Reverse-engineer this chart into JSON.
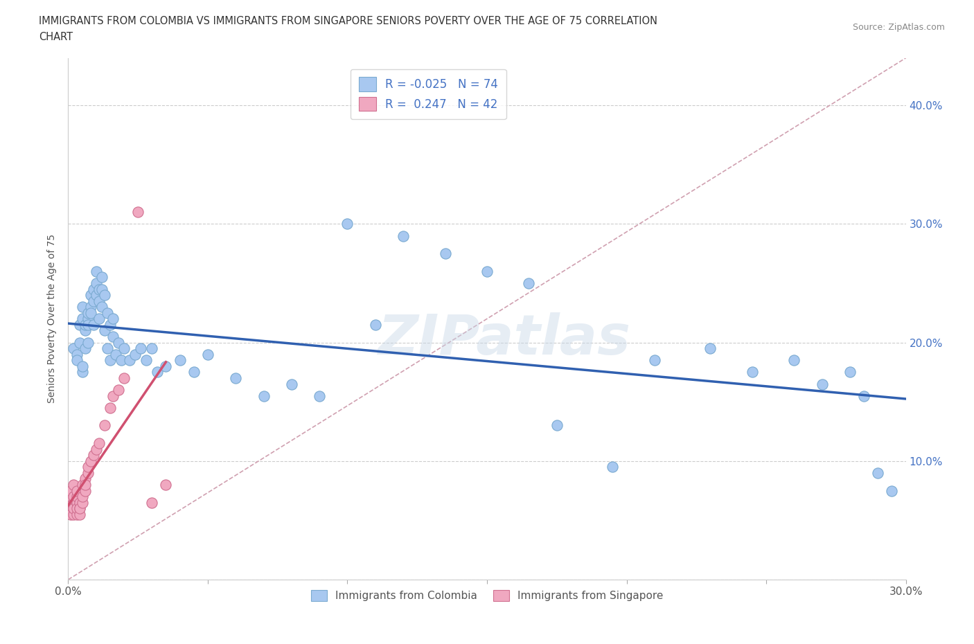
{
  "title_line1": "IMMIGRANTS FROM COLOMBIA VS IMMIGRANTS FROM SINGAPORE SENIORS POVERTY OVER THE AGE OF 75 CORRELATION",
  "title_line2": "CHART",
  "source_text": "Source: ZipAtlas.com",
  "ylabel": "Seniors Poverty Over the Age of 75",
  "r_colombia": -0.025,
  "n_colombia": 74,
  "r_singapore": 0.247,
  "n_singapore": 42,
  "xlim": [
    0.0,
    0.3
  ],
  "ylim": [
    0.0,
    0.44
  ],
  "xticks": [
    0.0,
    0.05,
    0.1,
    0.15,
    0.2,
    0.25,
    0.3
  ],
  "yticks": [
    0.0,
    0.1,
    0.2,
    0.3,
    0.4
  ],
  "colombia_color": "#a8c8f0",
  "colombia_edge_color": "#7aaad0",
  "singapore_color": "#f0a8c0",
  "singapore_edge_color": "#d07090",
  "colombia_line_color": "#3060b0",
  "singapore_line_color": "#d05070",
  "diagonal_color": "#d0a0b0",
  "watermark": "ZIPatlas",
  "colombia_scatter_x": [
    0.002,
    0.003,
    0.003,
    0.004,
    0.004,
    0.005,
    0.005,
    0.005,
    0.005,
    0.006,
    0.006,
    0.006,
    0.007,
    0.007,
    0.007,
    0.007,
    0.008,
    0.008,
    0.008,
    0.009,
    0.009,
    0.009,
    0.01,
    0.01,
    0.01,
    0.011,
    0.011,
    0.011,
    0.012,
    0.012,
    0.012,
    0.013,
    0.013,
    0.014,
    0.014,
    0.015,
    0.015,
    0.016,
    0.016,
    0.017,
    0.018,
    0.019,
    0.02,
    0.022,
    0.024,
    0.026,
    0.028,
    0.03,
    0.032,
    0.035,
    0.04,
    0.045,
    0.05,
    0.06,
    0.07,
    0.08,
    0.09,
    0.1,
    0.11,
    0.12,
    0.135,
    0.15,
    0.165,
    0.175,
    0.195,
    0.21,
    0.23,
    0.245,
    0.26,
    0.27,
    0.28,
    0.285,
    0.29,
    0.295
  ],
  "colombia_scatter_y": [
    0.195,
    0.19,
    0.185,
    0.2,
    0.215,
    0.175,
    0.18,
    0.22,
    0.23,
    0.21,
    0.195,
    0.215,
    0.22,
    0.2,
    0.215,
    0.225,
    0.23,
    0.24,
    0.225,
    0.235,
    0.245,
    0.215,
    0.25,
    0.24,
    0.26,
    0.235,
    0.245,
    0.22,
    0.255,
    0.23,
    0.245,
    0.24,
    0.21,
    0.225,
    0.195,
    0.215,
    0.185,
    0.22,
    0.205,
    0.19,
    0.2,
    0.185,
    0.195,
    0.185,
    0.19,
    0.195,
    0.185,
    0.195,
    0.175,
    0.18,
    0.185,
    0.175,
    0.19,
    0.17,
    0.155,
    0.165,
    0.155,
    0.3,
    0.215,
    0.29,
    0.275,
    0.26,
    0.25,
    0.13,
    0.095,
    0.185,
    0.195,
    0.175,
    0.185,
    0.165,
    0.175,
    0.155,
    0.09,
    0.075
  ],
  "singapore_scatter_x": [
    0.0,
    0.001,
    0.001,
    0.001,
    0.001,
    0.001,
    0.002,
    0.002,
    0.002,
    0.002,
    0.002,
    0.002,
    0.003,
    0.003,
    0.003,
    0.003,
    0.003,
    0.003,
    0.004,
    0.004,
    0.004,
    0.004,
    0.005,
    0.005,
    0.005,
    0.006,
    0.006,
    0.006,
    0.007,
    0.007,
    0.008,
    0.009,
    0.01,
    0.011,
    0.013,
    0.015,
    0.016,
    0.018,
    0.02,
    0.025,
    0.03,
    0.035
  ],
  "singapore_scatter_y": [
    0.065,
    0.06,
    0.065,
    0.07,
    0.055,
    0.075,
    0.065,
    0.06,
    0.07,
    0.055,
    0.06,
    0.08,
    0.065,
    0.055,
    0.065,
    0.06,
    0.07,
    0.075,
    0.06,
    0.065,
    0.055,
    0.06,
    0.065,
    0.07,
    0.08,
    0.085,
    0.075,
    0.08,
    0.09,
    0.095,
    0.1,
    0.105,
    0.11,
    0.115,
    0.13,
    0.145,
    0.155,
    0.16,
    0.17,
    0.31,
    0.065,
    0.08
  ]
}
